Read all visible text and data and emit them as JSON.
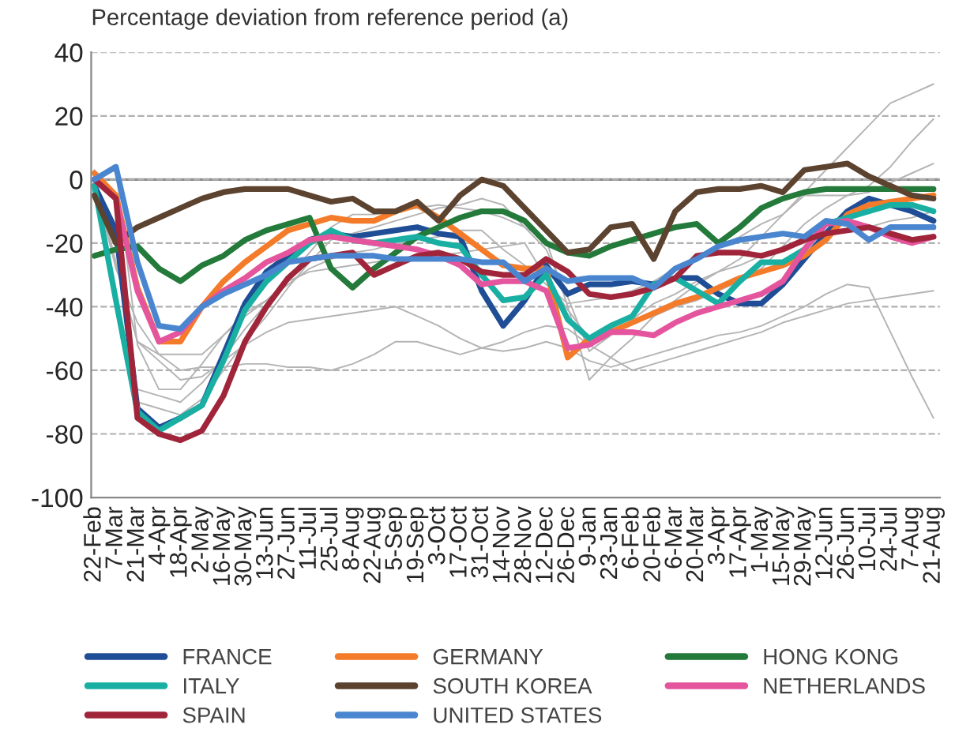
{
  "chart_data": {
    "type": "line",
    "title": "Percentage deviation from reference period (a)",
    "categories": [
      "22-Feb",
      "7-Mar",
      "21-Mar",
      "4-Apr",
      "18-Apr",
      "2-May",
      "16-May",
      "30-May",
      "13-Jun",
      "27-Jun",
      "11-Jul",
      "25-Jul",
      "8-Aug",
      "22-Aug",
      "5-Sep",
      "19-Sep",
      "3-Oct",
      "17-Oct",
      "31-Oct",
      "14-Nov",
      "28-Nov",
      "12-Dec",
      "26-Dec",
      "9-Jan",
      "23-Jan",
      "6-Feb",
      "20-Feb",
      "6-Mar",
      "20-Mar",
      "3-Apr",
      "17-Apr",
      "1-May",
      "15-May",
      "29-May",
      "12-Jun",
      "26-Jun",
      "10-Jul",
      "24-Jul",
      "7-Aug",
      "21-Aug"
    ],
    "ylim": [
      -100,
      40
    ],
    "yticks": [
      -100,
      -80,
      -60,
      -40,
      -20,
      0,
      20,
      40
    ],
    "grid": "y",
    "legend": "bottom",
    "line_style": "solid",
    "ref_lines": [
      {
        "axis": "y",
        "value": 0,
        "color": "#8c8c8c",
        "line_style": "solid"
      }
    ],
    "series": [
      {
        "color": "#b4b4b4",
        "values": [
          0,
          3,
          -52,
          -66,
          -66,
          -58,
          -49,
          -42,
          -38,
          -33,
          -28,
          -25,
          -23,
          -22,
          -20,
          -19,
          -18,
          -16,
          -16,
          -22,
          -27,
          -33,
          -39,
          -38,
          -37,
          -35,
          -32,
          -28,
          -25,
          -21,
          -18,
          -14,
          -11,
          -4,
          3,
          10,
          17,
          24,
          27,
          30
        ]
      },
      {
        "color": "#b4b4b4",
        "values": [
          2,
          -27,
          -51,
          -57,
          -63,
          -62,
          -57,
          -52,
          -48,
          -45,
          -44,
          -43,
          -42,
          -41,
          -40,
          -43,
          -46,
          -50,
          -53,
          -54,
          -53,
          -51,
          -53,
          -57,
          -59,
          -57,
          -55,
          -53,
          -51,
          -49,
          -48,
          -46,
          -43,
          -40,
          -36,
          -33,
          -34,
          -48,
          -62,
          -75
        ]
      },
      {
        "color": "#b4b4b4",
        "values": [
          -1,
          -28,
          -45,
          -55,
          -60,
          -59,
          -59,
          -58,
          -58,
          -59,
          -59,
          -60,
          -58,
          -55,
          -51,
          -51,
          -53,
          -55,
          -53,
          -51,
          -48,
          -46,
          -47,
          -52,
          -56,
          -60,
          -58,
          -56,
          -54,
          -52,
          -50,
          -48,
          -45,
          -43,
          -41,
          -39,
          -38,
          -37,
          -36,
          -35
        ]
      },
      {
        "color": "#b4b4b4",
        "values": [
          3,
          -38,
          -70,
          -72,
          -74,
          -69,
          -60,
          -51,
          -43,
          -34,
          -26,
          -19,
          -17,
          -15,
          -13,
          -11,
          -9,
          -8,
          -6,
          -8,
          -15,
          -22,
          -37,
          -54,
          -49,
          -44,
          -39,
          -36,
          -32,
          -29,
          -25,
          -18,
          -11,
          -5,
          -5,
          -5,
          -4,
          -1,
          2,
          5
        ]
      },
      {
        "color": "#b4b4b4",
        "values": [
          1,
          -41,
          -66,
          -68,
          -70,
          -64,
          -56,
          -47,
          -39,
          -31,
          -23,
          -15,
          -11,
          -11,
          -10,
          -9,
          -8,
          -9,
          -10,
          -12,
          -15,
          -19,
          -40,
          -63,
          -56,
          -50,
          -43,
          -38,
          -33,
          -29,
          -27,
          -24,
          -22,
          -20,
          -18,
          -16,
          -15,
          -13,
          -12,
          -10
        ]
      },
      {
        "color": "#b4b4b4",
        "values": [
          0,
          -26,
          -51,
          -55,
          -55,
          -55,
          -49,
          -43,
          -38,
          -32,
          -29,
          -28,
          -27,
          -26,
          -25,
          -24,
          -24,
          -23,
          -22,
          -21,
          -20,
          -31,
          -41,
          -50,
          -47,
          -45,
          -43,
          -40,
          -38,
          -35,
          -32,
          -28,
          -21,
          -14,
          -9,
          -5,
          -2,
          4,
          12,
          19
        ]
      },
      {
        "name": "FRANCE",
        "color": "#1f4e96",
        "values": [
          -2,
          -16,
          -72,
          -78,
          -75,
          -71,
          -55,
          -39,
          -29,
          -24,
          -19,
          -17,
          -18,
          -17,
          -16,
          -15,
          -17,
          -18,
          -35,
          -46,
          -38,
          -27,
          -36,
          -33,
          -33,
          -32,
          -33,
          -31,
          -31,
          -36,
          -39,
          -39,
          -33,
          -25,
          -17,
          -10,
          -6,
          -8,
          -10,
          -13
        ]
      },
      {
        "name": "GERMANY",
        "color": "#f47b2a",
        "values": [
          2,
          -5,
          -34,
          -51,
          -51,
          -40,
          -32,
          -26,
          -21,
          -16,
          -14,
          -12,
          -13,
          -13,
          -10,
          -8,
          -12,
          -17,
          -22,
          -27,
          -28,
          -28,
          -56,
          -50,
          -48,
          -45,
          -42,
          -39,
          -37,
          -34,
          -31,
          -29,
          -27,
          -24,
          -19,
          -11,
          -8,
          -7,
          -6,
          -5
        ]
      },
      {
        "name": "HONG KONG",
        "color": "#237a3a",
        "values": [
          -24,
          -22,
          -21,
          -28,
          -32,
          -27,
          -24,
          -19,
          -16,
          -14,
          -12,
          -28,
          -34,
          -28,
          -23,
          -18,
          -15,
          -12,
          -10,
          -10,
          -13,
          -20,
          -23,
          -24,
          -21,
          -19,
          -17,
          -15,
          -14,
          -20,
          -15,
          -9,
          -6,
          -4,
          -3,
          -3,
          -3,
          -3,
          -3,
          -3
        ]
      },
      {
        "name": "ITALY",
        "color": "#19b0a3",
        "values": [
          -2,
          -38,
          -73,
          -79,
          -75,
          -71,
          -57,
          -41,
          -32,
          -26,
          -20,
          -16,
          -19,
          -20,
          -19,
          -18,
          -20,
          -21,
          -30,
          -38,
          -37,
          -30,
          -44,
          -50,
          -46,
          -43,
          -33,
          -31,
          -35,
          -39,
          -32,
          -26,
          -26,
          -22,
          -14,
          -12,
          -10,
          -8,
          -8,
          -10
        ]
      },
      {
        "name": "SOUTH KOREA",
        "color": "#5c4330",
        "values": [
          -5,
          -20,
          -15,
          -12,
          -9,
          -6,
          -4,
          -3,
          -3,
          -3,
          -5,
          -7,
          -6,
          -10,
          -10,
          -7,
          -13,
          -5,
          0,
          -2,
          -9,
          -16,
          -23,
          -22,
          -15,
          -14,
          -25,
          -10,
          -4,
          -3,
          -3,
          -2,
          -4,
          3,
          4,
          5,
          1,
          -2,
          -5,
          -6
        ]
      },
      {
        "name": "NETHERLANDS",
        "color": "#e5559e",
        "values": [
          0,
          -6,
          -35,
          -51,
          -48,
          -40,
          -35,
          -31,
          -26,
          -23,
          -19,
          -18,
          -19,
          -20,
          -21,
          -22,
          -24,
          -27,
          -33,
          -32,
          -32,
          -35,
          -53,
          -52,
          -48,
          -48,
          -49,
          -45,
          -42,
          -40,
          -38,
          -36,
          -32,
          -22,
          -14,
          -13,
          -15,
          -18,
          -20,
          -18
        ]
      },
      {
        "name": "SPAIN",
        "color": "#a0253a",
        "values": [
          0,
          -6,
          -75,
          -80,
          -82,
          -79,
          -68,
          -51,
          -40,
          -31,
          -25,
          -24,
          -23,
          -30,
          -27,
          -24,
          -23,
          -25,
          -29,
          -30,
          -30,
          -25,
          -29,
          -36,
          -37,
          -36,
          -34,
          -31,
          -24,
          -23,
          -23,
          -24,
          -22,
          -19,
          -17,
          -16,
          -15,
          -17,
          -19,
          -18
        ]
      },
      {
        "name": "UNITED STATES",
        "color": "#4a86cf",
        "values": [
          0,
          4,
          -26,
          -46,
          -47,
          -40,
          -36,
          -33,
          -30,
          -26,
          -25,
          -24,
          -24,
          -24,
          -25,
          -25,
          -25,
          -25,
          -26,
          -26,
          -32,
          -28,
          -32,
          -31,
          -31,
          -31,
          -34,
          -28,
          -25,
          -21,
          -19,
          -18,
          -17,
          -18,
          -13,
          -14,
          -19,
          -15,
          -15,
          -15
        ]
      }
    ]
  }
}
